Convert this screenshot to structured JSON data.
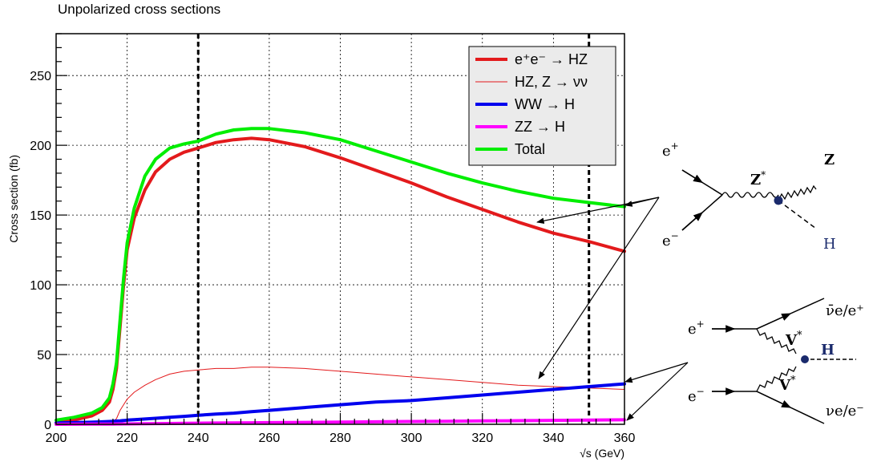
{
  "header": {
    "title": "Unpolarized cross sections"
  },
  "chart_data": {
    "type": "line",
    "title": "Unpolarized cross sections",
    "xlabel": "√s (GeV)",
    "ylabel": "Cross section (fb)",
    "xlim": [
      200,
      360
    ],
    "ylim": [
      0,
      280
    ],
    "xticks": [
      200,
      220,
      240,
      260,
      280,
      300,
      320,
      340,
      360
    ],
    "yticks": [
      0,
      50,
      100,
      150,
      200,
      250
    ],
    "grid": true,
    "legend_position": "top-right",
    "vlines": [
      240,
      350
    ],
    "x": [
      200,
      205,
      210,
      213,
      215,
      216,
      217,
      218,
      219,
      220,
      222,
      225,
      228,
      232,
      236,
      240,
      245,
      250,
      255,
      260,
      270,
      280,
      290,
      300,
      310,
      320,
      330,
      340,
      350,
      360
    ],
    "series": [
      {
        "name": "e⁺e⁻ → HZ",
        "color": "#e31a1c",
        "width": 4,
        "values": [
          1,
          3,
          6,
          10,
          16,
          25,
          40,
          70,
          100,
          125,
          148,
          168,
          181,
          190,
          195,
          198,
          202,
          204,
          205,
          204,
          199,
          191,
          182,
          173,
          163,
          154,
          145,
          137,
          131,
          124
        ]
      },
      {
        "name": "HZ, Z → νν",
        "color": "#e31a1c",
        "width": 1,
        "values": [
          0,
          0,
          0,
          0,
          1,
          2,
          4,
          10,
          14,
          18,
          23,
          28,
          32,
          36,
          38,
          39,
          40,
          40,
          41,
          41,
          40,
          38,
          36,
          34,
          32,
          30,
          28,
          27,
          26,
          25
        ]
      },
      {
        "name": "WW → H",
        "color": "#0000ee",
        "width": 4,
        "values": [
          1,
          1.2,
          1.5,
          1.8,
          2,
          2.1,
          2.3,
          2.5,
          2.7,
          3,
          3.3,
          3.8,
          4.3,
          5,
          5.7,
          6.5,
          7.3,
          8,
          9,
          10,
          12,
          14,
          16,
          17,
          19,
          21,
          23,
          25,
          27,
          29
        ]
      },
      {
        "name": "ZZ → H",
        "color": "#ff00ff",
        "width": 4,
        "values": [
          0,
          0.05,
          0.1,
          0.15,
          0.2,
          0.2,
          0.25,
          0.25,
          0.3,
          0.3,
          0.35,
          0.4,
          0.5,
          0.6,
          0.7,
          0.8,
          0.9,
          1,
          1.1,
          1.2,
          1.4,
          1.6,
          1.8,
          2,
          2.2,
          2.4,
          2.6,
          2.8,
          3,
          3.2
        ]
      },
      {
        "name": "Total",
        "color": "#00ee00",
        "width": 4,
        "values": [
          3,
          5,
          8,
          12,
          19,
          29,
          44,
          75,
          105,
          130,
          155,
          178,
          190,
          198,
          201,
          203,
          208,
          211,
          212,
          212,
          209,
          204,
          196,
          188,
          180,
          173,
          167,
          162,
          159,
          156
        ]
      }
    ]
  },
  "diagrams": {
    "hz": {
      "e_plus": "e",
      "e_plus_sup": "+",
      "e_minus": "e",
      "e_minus_sup": "−",
      "boson": "Z",
      "boson_sup": "*",
      "z": "Z",
      "h": "H"
    },
    "vbf": {
      "e_plus": "e",
      "e_plus_sup": "+",
      "e_minus": "e",
      "e_minus_sup": "−",
      "v_top": "V",
      "v_top_sup": "*",
      "v_bottom": "V",
      "v_bottom_sup": "*",
      "h": "H",
      "out_top": "ν̄e/e⁺",
      "out_bottom": "νe/e⁻"
    }
  },
  "colors": {
    "frame": "#000000",
    "grid": "#000000",
    "legend_bg": "#ebebeb",
    "higgs_vertex": "#1a2a6c"
  }
}
